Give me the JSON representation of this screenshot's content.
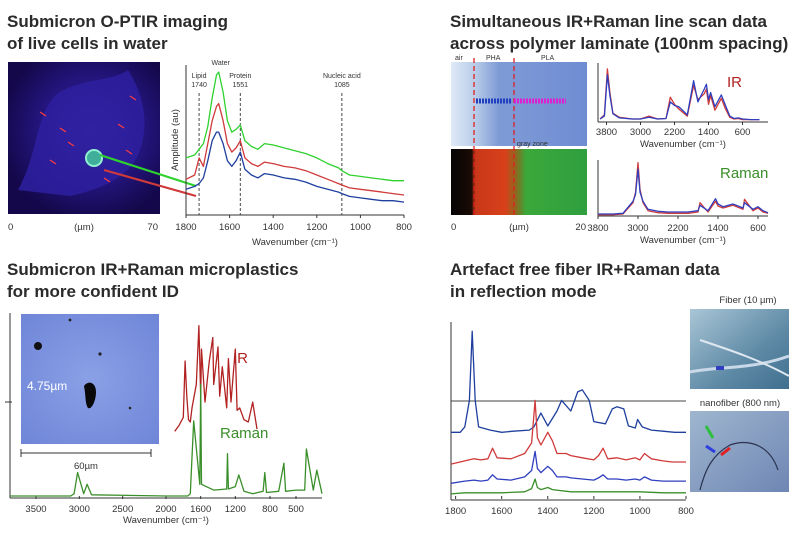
{
  "colors": {
    "ir": "#b22222",
    "raman": "#3a8f2a",
    "spectrum_blue": "#1f3f9f",
    "spectrum_red": "#d03a3a",
    "spectrum_green": "#2fd12f",
    "title": "#2b2b2b"
  },
  "panels": {
    "tl": {
      "title_line1": "Submicron O-PTIR imaging",
      "title_line2": "of live cells in water",
      "image_axis_left": "0",
      "image_axis_mid": "(µm)",
      "image_axis_right": "70"
    },
    "tr": {
      "title_line1": "Simultaneous IR+Raman line scan data",
      "title_line2": "across polymer laminate (100nm spacing)",
      "label_air": "air",
      "label_pha": "PHA",
      "label_pla": "PLA",
      "label_gray_zone": "gray zone",
      "image_axis_left": "0",
      "image_axis_mid": "(µm)",
      "image_axis_right": "20",
      "ir_label": "IR",
      "raman_label": "Raman"
    },
    "bl": {
      "title_line1": "Submicron IR+Raman microplastics",
      "title_line2": "for more confident ID",
      "size_label": "4.75µm",
      "scale_label": "60µm",
      "ir_label": "IR",
      "raman_label": "Raman"
    },
    "br": {
      "title_line1": "Artefact free fiber IR+Raman data",
      "title_line2": "in reflection mode",
      "fiber_label": "Fiber (10 µm)",
      "nanofiber_label": "nanofiber (800 nm)"
    }
  },
  "chart_data": [
    {
      "type": "line",
      "id": "cells-spectra",
      "title": "",
      "xlabel": "Wavenumber (cm⁻¹)",
      "ylabel": "Amplitude (au)",
      "xlim": [
        1800,
        800
      ],
      "xticks": [
        1800,
        1600,
        1400,
        1200,
        1000,
        800
      ],
      "annotations": [
        {
          "text": "Lipid",
          "text2": "1740",
          "x": 1740
        },
        {
          "text": "Water",
          "text2": "",
          "x": 1650
        },
        {
          "text": "Protein",
          "text2": "1551",
          "x": 1551
        },
        {
          "text": "Nucleic acid",
          "text2": "1085",
          "x": 1085
        }
      ],
      "series": [
        {
          "name": "green",
          "color": "#2fd12f",
          "x": [
            1800,
            1760,
            1740,
            1720,
            1700,
            1680,
            1660,
            1650,
            1630,
            1610,
            1590,
            1570,
            1551,
            1530,
            1500,
            1470,
            1440,
            1400,
            1350,
            1300,
            1250,
            1200,
            1150,
            1100,
            1085,
            1050,
            1000,
            950,
            900,
            850,
            800
          ],
          "y": [
            0.4,
            0.42,
            0.46,
            0.5,
            0.62,
            0.82,
            0.98,
            1.0,
            0.86,
            0.66,
            0.58,
            0.6,
            0.63,
            0.52,
            0.48,
            0.46,
            0.5,
            0.49,
            0.47,
            0.45,
            0.43,
            0.4,
            0.36,
            0.33,
            0.31,
            0.28,
            0.27,
            0.26,
            0.25,
            0.24,
            0.24
          ]
        },
        {
          "name": "red",
          "color": "#d03a3a",
          "x": [
            1800,
            1760,
            1740,
            1720,
            1700,
            1680,
            1660,
            1650,
            1630,
            1610,
            1590,
            1570,
            1551,
            1530,
            1500,
            1470,
            1440,
            1400,
            1350,
            1300,
            1250,
            1200,
            1150,
            1100,
            1085,
            1050,
            1000,
            950,
            900,
            850,
            800
          ],
          "y": [
            0.25,
            0.28,
            0.4,
            0.34,
            0.5,
            0.66,
            0.76,
            0.78,
            0.66,
            0.5,
            0.44,
            0.47,
            0.52,
            0.4,
            0.36,
            0.34,
            0.37,
            0.36,
            0.34,
            0.33,
            0.31,
            0.28,
            0.25,
            0.22,
            0.21,
            0.19,
            0.18,
            0.17,
            0.16,
            0.15,
            0.14
          ]
        },
        {
          "name": "blue",
          "color": "#1f3f9f",
          "x": [
            1800,
            1760,
            1740,
            1720,
            1700,
            1680,
            1660,
            1650,
            1630,
            1610,
            1590,
            1570,
            1551,
            1530,
            1500,
            1470,
            1440,
            1400,
            1350,
            1300,
            1250,
            1200,
            1150,
            1100,
            1085,
            1050,
            1000,
            950,
            900,
            850,
            800
          ],
          "y": [
            0.18,
            0.2,
            0.22,
            0.26,
            0.38,
            0.52,
            0.58,
            0.58,
            0.5,
            0.38,
            0.34,
            0.38,
            0.44,
            0.32,
            0.28,
            0.26,
            0.29,
            0.28,
            0.26,
            0.25,
            0.23,
            0.2,
            0.18,
            0.16,
            0.15,
            0.13,
            0.12,
            0.11,
            0.1,
            0.1,
            0.09
          ]
        }
      ]
    },
    {
      "type": "line",
      "id": "laminate-ir",
      "xlabel": "Wavenumber (cm⁻¹)",
      "xlim": [
        4000,
        0
      ],
      "xticks": [
        3800,
        3000,
        2200,
        1400,
        600
      ],
      "series": [
        {
          "name": "red",
          "color": "#d03a3a",
          "x": [
            3950,
            3850,
            3780,
            3720,
            3650,
            3500,
            3200,
            3000,
            2800,
            2600,
            2400,
            2300,
            2200,
            2100,
            1900,
            1750,
            1650,
            1500,
            1450,
            1400,
            1350,
            1250,
            1100,
            1000,
            900,
            800,
            700,
            600,
            400,
            200
          ],
          "y": [
            0.05,
            0.12,
            0.9,
            0.5,
            0.15,
            0.08,
            0.05,
            0.05,
            0.1,
            0.05,
            0.06,
            0.42,
            0.3,
            0.22,
            0.1,
            0.62,
            0.38,
            0.48,
            0.56,
            0.3,
            0.45,
            0.2,
            0.4,
            0.22,
            0.08,
            0.05,
            0.06,
            0.04,
            0.04,
            0.04
          ]
        },
        {
          "name": "blue",
          "color": "#2f3fbf",
          "x": [
            3950,
            3850,
            3780,
            3720,
            3650,
            3500,
            3200,
            3000,
            2800,
            2600,
            2400,
            2300,
            2200,
            2100,
            1900,
            1750,
            1650,
            1500,
            1450,
            1400,
            1350,
            1250,
            1100,
            1000,
            900,
            800,
            700,
            600,
            400,
            200
          ],
          "y": [
            0.05,
            0.1,
            0.8,
            0.45,
            0.14,
            0.07,
            0.05,
            0.05,
            0.08,
            0.05,
            0.06,
            0.34,
            0.28,
            0.26,
            0.12,
            0.7,
            0.34,
            0.56,
            0.64,
            0.38,
            0.5,
            0.26,
            0.46,
            0.28,
            0.1,
            0.06,
            0.07,
            0.05,
            0.04,
            0.04
          ]
        }
      ]
    },
    {
      "type": "line",
      "id": "laminate-raman",
      "xlabel": "Wavenumber (cm⁻¹)",
      "xlim": [
        3800,
        400
      ],
      "xticks": [
        3800,
        3000,
        2200,
        1400,
        600
      ],
      "series": [
        {
          "name": "red",
          "color": "#d03a3a",
          "x": [
            3800,
            3500,
            3300,
            3100,
            3050,
            3000,
            2960,
            2900,
            2800,
            2600,
            2400,
            2200,
            2000,
            1800,
            1760,
            1600,
            1450,
            1400,
            1300,
            1100,
            900,
            870,
            700,
            600,
            500,
            400
          ],
          "y": [
            0.02,
            0.02,
            0.03,
            0.2,
            0.35,
            0.8,
            0.4,
            0.2,
            0.08,
            0.05,
            0.04,
            0.04,
            0.04,
            0.06,
            0.2,
            0.06,
            0.22,
            0.15,
            0.12,
            0.16,
            0.1,
            0.25,
            0.08,
            0.12,
            0.06,
            0.04
          ]
        },
        {
          "name": "blue",
          "color": "#2f3fbf",
          "x": [
            3800,
            3500,
            3300,
            3100,
            3050,
            3000,
            2960,
            2900,
            2800,
            2600,
            2400,
            2200,
            2000,
            1800,
            1760,
            1600,
            1450,
            1400,
            1300,
            1100,
            900,
            870,
            700,
            600,
            500,
            400
          ],
          "y": [
            0.03,
            0.03,
            0.04,
            0.22,
            0.32,
            0.7,
            0.36,
            0.22,
            0.1,
            0.07,
            0.06,
            0.06,
            0.06,
            0.08,
            0.16,
            0.08,
            0.26,
            0.18,
            0.14,
            0.18,
            0.12,
            0.2,
            0.1,
            0.14,
            0.08,
            0.05
          ]
        }
      ]
    },
    {
      "type": "line",
      "id": "microplastics",
      "xlabel": "Wavenumber (cm⁻¹)",
      "xlim": [
        3800,
        200
      ],
      "xticks": [
        3500,
        3000,
        2500,
        2000,
        1600,
        1200,
        800,
        500
      ],
      "series": [
        {
          "name": "IR",
          "color": "#b22222",
          "offset": 0.55,
          "x": [
            1900,
            1850,
            1800,
            1780,
            1760,
            1740,
            1720,
            1700,
            1650,
            1620,
            1600,
            1590,
            1550,
            1500,
            1460,
            1450,
            1400,
            1380,
            1350,
            1300,
            1280,
            1250,
            1200,
            1180,
            1150,
            1100,
            1050,
            1000,
            950
          ],
          "y": [
            0.0,
            0.05,
            0.12,
            0.6,
            0.3,
            0.1,
            0.08,
            0.2,
            0.4,
            0.9,
            0.3,
            0.7,
            0.25,
            0.6,
            0.8,
            0.4,
            0.72,
            0.3,
            0.55,
            0.2,
            0.62,
            0.25,
            0.7,
            0.18,
            0.2,
            0.1,
            0.08,
            0.25,
            0.02
          ]
        },
        {
          "name": "Raman",
          "color": "#3a8f2a",
          "offset": 0.0,
          "x": [
            3800,
            3100,
            3060,
            3020,
            2950,
            2910,
            2860,
            2000,
            1750,
            1720,
            1680,
            1610,
            1600,
            1590,
            1450,
            1300,
            1290,
            1280,
            1200,
            1160,
            1100,
            1000,
            880,
            860,
            840,
            700,
            640,
            620,
            500,
            400,
            380,
            300,
            260,
            200
          ],
          "y": [
            0.0,
            0.0,
            0.02,
            0.2,
            0.02,
            0.1,
            0.01,
            0.0,
            0.0,
            0.02,
            0.64,
            0.1,
            0.95,
            0.1,
            0.05,
            0.06,
            0.36,
            0.06,
            0.08,
            0.18,
            0.04,
            0.02,
            0.04,
            0.2,
            0.03,
            0.04,
            0.28,
            0.04,
            0.05,
            0.05,
            0.4,
            0.05,
            0.22,
            0.02
          ]
        }
      ]
    },
    {
      "type": "line",
      "id": "fiber",
      "xlabel": "",
      "xlim": [
        1820,
        800
      ],
      "xticks": [
        1800,
        1600,
        1400,
        1200,
        1000,
        800
      ],
      "series": [
        {
          "name": "fiber",
          "color": "#1f3f9f",
          "offset": 0.6,
          "x": [
            1820,
            1780,
            1760,
            1740,
            1728,
            1715,
            1700,
            1650,
            1600,
            1550,
            1480,
            1460,
            1430,
            1400,
            1360,
            1340,
            1300,
            1270,
            1250,
            1220,
            1200,
            1150,
            1120,
            1100,
            1070,
            1050,
            1020,
            1010,
            990,
            950,
            900,
            850,
            800
          ],
          "y": [
            0.0,
            0.0,
            0.05,
            0.3,
            0.95,
            0.3,
            0.05,
            0.02,
            0.0,
            0.01,
            0.02,
            0.05,
            0.18,
            0.06,
            0.2,
            0.3,
            0.2,
            0.38,
            0.4,
            0.3,
            0.1,
            0.08,
            0.22,
            0.24,
            0.22,
            0.06,
            0.04,
            0.12,
            0.05,
            0.02,
            0.01,
            0.0,
            0.0
          ]
        },
        {
          "name": "red",
          "color": "#d03a3a",
          "offset": 0.3,
          "x": [
            1820,
            1760,
            1720,
            1690,
            1660,
            1640,
            1620,
            1560,
            1500,
            1470,
            1455,
            1445,
            1430,
            1400,
            1380,
            1360,
            1320,
            1300,
            1250,
            1200,
            1180,
            1160,
            1140,
            1100,
            1060,
            1020,
            1000,
            980,
            950,
            900,
            860,
            800
          ],
          "y": [
            0.0,
            0.03,
            0.05,
            0.04,
            0.05,
            0.15,
            0.06,
            0.05,
            0.1,
            0.2,
            0.6,
            0.25,
            0.18,
            0.3,
            0.22,
            0.1,
            0.1,
            0.08,
            0.06,
            0.04,
            0.08,
            0.15,
            0.05,
            0.06,
            0.04,
            0.06,
            0.04,
            0.1,
            0.05,
            0.03,
            0.02,
            0.02
          ]
        },
        {
          "name": "blue",
          "color": "#2f3fbf",
          "offset": 0.12,
          "x": [
            1820,
            1760,
            1720,
            1690,
            1660,
            1640,
            1620,
            1560,
            1500,
            1470,
            1455,
            1445,
            1430,
            1400,
            1380,
            1360,
            1320,
            1300,
            1250,
            1200,
            1180,
            1160,
            1140,
            1100,
            1060,
            1020,
            1000,
            980,
            950,
            900,
            860,
            800
          ],
          "y": [
            0.0,
            0.02,
            0.03,
            0.02,
            0.03,
            0.08,
            0.04,
            0.03,
            0.06,
            0.12,
            0.3,
            0.14,
            0.1,
            0.16,
            0.12,
            0.06,
            0.06,
            0.05,
            0.04,
            0.03,
            0.05,
            0.08,
            0.04,
            0.04,
            0.03,
            0.04,
            0.03,
            0.06,
            0.03,
            0.02,
            0.02,
            0.02
          ]
        },
        {
          "name": "green",
          "color": "#3a8f2a",
          "offset": 0.02,
          "x": [
            1820,
            1760,
            1700,
            1600,
            1500,
            1470,
            1455,
            1445,
            1430,
            1400,
            1380,
            1300,
            1200,
            1100,
            1000,
            900,
            800
          ],
          "y": [
            0.0,
            0.01,
            0.01,
            0.01,
            0.02,
            0.05,
            0.14,
            0.06,
            0.04,
            0.06,
            0.04,
            0.02,
            0.02,
            0.02,
            0.02,
            0.01,
            0.01
          ]
        }
      ]
    }
  ]
}
